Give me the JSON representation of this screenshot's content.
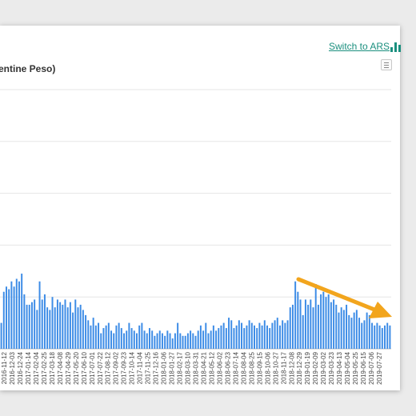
{
  "header": {
    "switch_label": "Switch to ARS",
    "title": "entine Peso)",
    "switch_icon": "bar-chart-icon",
    "menu_icon": "hamburger-menu-icon"
  },
  "colors": {
    "bar": "#3d8ce6",
    "link": "#1a8f7e",
    "arrow": "#f2a51d",
    "grid": "#e6e6e6"
  },
  "chart_data": {
    "type": "bar",
    "title": "entine Peso)",
    "xlabel": "",
    "ylabel": "",
    "grid": true,
    "ylim": [
      0,
      5
    ],
    "annotation": "orange arrow pointing down-right over recent bars",
    "x_tick_labels": [
      "2016-11-12",
      "2016-12-03",
      "2016-12-24",
      "2017-01-14",
      "2017-02-04",
      "2017-02-25",
      "2017-03-18",
      "2017-04-08",
      "2017-04-29",
      "2017-05-20",
      "2017-06-10",
      "2017-07-01",
      "2017-07-22",
      "2017-08-12",
      "2017-09-02",
      "2017-09-23",
      "2017-10-14",
      "2017-11-04",
      "2017-11-25",
      "2017-12-16",
      "2018-01-06",
      "2018-01-27",
      "2018-02-17",
      "2018-03-10",
      "2018-03-31",
      "2018-04-21",
      "2018-05-12",
      "2018-06-02",
      "2018-06-23",
      "2018-07-14",
      "2018-08-04",
      "2018-08-25",
      "2018-09-15",
      "2018-10-06",
      "2018-10-27",
      "2018-11-17",
      "2018-12-08",
      "2018-12-29",
      "2019-01-19",
      "2019-02-09",
      "2019-03-02",
      "2019-03-23",
      "2019-04-13",
      "2019-05-04",
      "2019-05-25",
      "2019-06-15",
      "2019-07-06",
      "2019-07-27"
    ],
    "values": [
      0.5,
      1.1,
      1.2,
      1.15,
      1.3,
      1.2,
      1.35,
      1.3,
      1.45,
      1.05,
      0.85,
      0.85,
      0.9,
      0.95,
      0.75,
      1.3,
      0.95,
      1.05,
      0.8,
      0.75,
      1.0,
      0.8,
      0.95,
      0.9,
      0.85,
      0.95,
      0.8,
      0.9,
      0.7,
      0.95,
      0.8,
      0.85,
      0.75,
      0.65,
      0.55,
      0.45,
      0.6,
      0.45,
      0.5,
      0.3,
      0.4,
      0.45,
      0.5,
      0.35,
      0.3,
      0.45,
      0.5,
      0.4,
      0.3,
      0.35,
      0.5,
      0.4,
      0.35,
      0.3,
      0.45,
      0.5,
      0.35,
      0.3,
      0.4,
      0.35,
      0.25,
      0.3,
      0.35,
      0.3,
      0.25,
      0.35,
      0.3,
      0.2,
      0.3,
      0.5,
      0.3,
      0.25,
      0.25,
      0.3,
      0.35,
      0.3,
      0.25,
      0.35,
      0.45,
      0.35,
      0.5,
      0.3,
      0.35,
      0.45,
      0.35,
      0.4,
      0.45,
      0.5,
      0.4,
      0.6,
      0.55,
      0.4,
      0.45,
      0.55,
      0.5,
      0.4,
      0.45,
      0.55,
      0.5,
      0.45,
      0.4,
      0.5,
      0.45,
      0.55,
      0.45,
      0.4,
      0.5,
      0.55,
      0.6,
      0.45,
      0.55,
      0.5,
      0.55,
      0.8,
      0.85,
      1.3,
      1.1,
      0.95,
      0.65,
      0.95,
      0.85,
      0.95,
      0.8,
      1.25,
      0.85,
      1.05,
      1.1,
      1.0,
      1.05,
      0.9,
      0.95,
      0.85,
      0.7,
      0.8,
      0.75,
      0.85,
      0.65,
      0.6,
      0.7,
      0.75,
      0.6,
      0.5,
      0.55,
      0.7,
      0.65,
      0.5,
      0.45,
      0.5,
      0.45,
      0.4,
      0.45,
      0.5,
      0.45
    ]
  }
}
